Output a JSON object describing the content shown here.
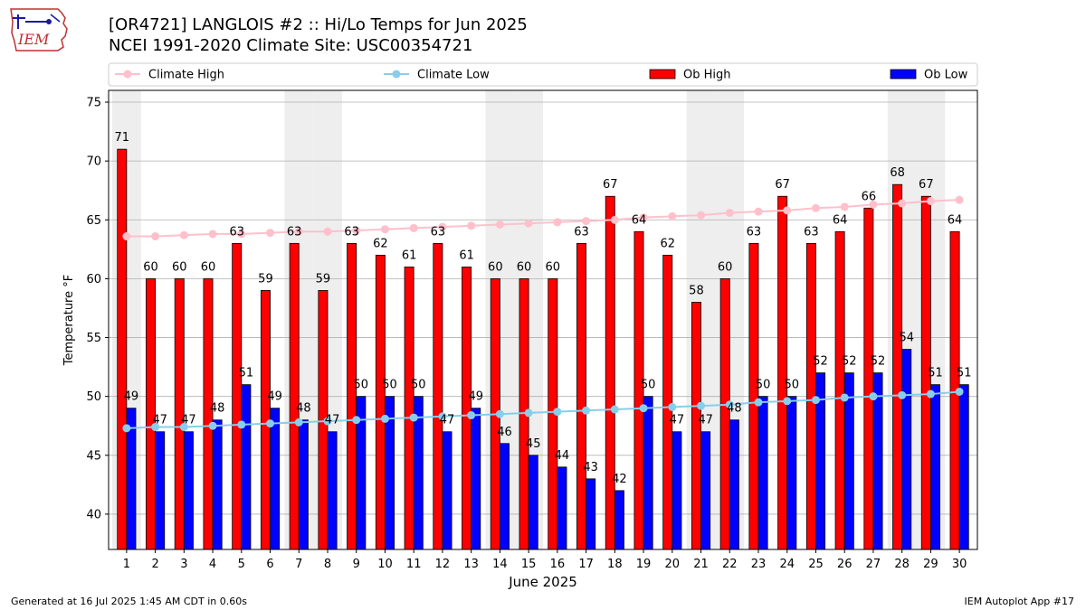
{
  "title_line1": "[OR4721] LANGLOIS #2 :: Hi/Lo Temps for Jun 2025",
  "title_line2": "NCEI 1991-2020 Climate Site: USC00354721",
  "logo_text": "IEM",
  "footer_left": "Generated at 16 Jul 2025 1:45 AM CDT in 0.60s",
  "footer_right": "IEM Autoplot App #17",
  "colors": {
    "ob_high": "#ff0000",
    "ob_low": "#0000ff",
    "climate_high": "#ffc0cb",
    "climate_low": "#87ceeb",
    "weekend_shade": "#eeeeee",
    "grid": "#b0b0b0"
  },
  "chart_data": {
    "type": "bar",
    "xlabel": "June 2025",
    "ylabel": "Temperature °F",
    "ylim": [
      37,
      76
    ],
    "yticks": [
      40,
      45,
      50,
      55,
      60,
      65,
      70,
      75
    ],
    "grid": "horizontal",
    "legend_position": "top",
    "categories": [
      "1",
      "2",
      "3",
      "4",
      "5",
      "6",
      "7",
      "8",
      "9",
      "10",
      "11",
      "12",
      "13",
      "14",
      "15",
      "16",
      "17",
      "18",
      "19",
      "20",
      "21",
      "22",
      "23",
      "24",
      "25",
      "26",
      "27",
      "28",
      "29",
      "30"
    ],
    "shaded_days": [
      1,
      7,
      8,
      14,
      15,
      21,
      22,
      28,
      29
    ],
    "series": [
      {
        "name": "Climate High",
        "kind": "line",
        "values": [
          63.6,
          63.6,
          63.7,
          63.8,
          63.8,
          63.9,
          64.0,
          64.0,
          64.1,
          64.2,
          64.3,
          64.4,
          64.5,
          64.6,
          64.7,
          64.8,
          64.9,
          65.0,
          65.2,
          65.3,
          65.4,
          65.6,
          65.7,
          65.8,
          66.0,
          66.1,
          66.3,
          66.4,
          66.6,
          66.7
        ]
      },
      {
        "name": "Climate Low",
        "kind": "line",
        "values": [
          47.3,
          47.4,
          47.4,
          47.5,
          47.6,
          47.7,
          47.8,
          47.9,
          48.0,
          48.1,
          48.2,
          48.3,
          48.4,
          48.5,
          48.6,
          48.7,
          48.8,
          48.9,
          49.0,
          49.1,
          49.2,
          49.3,
          49.5,
          49.6,
          49.7,
          49.9,
          50.0,
          50.1,
          50.2,
          50.4
        ]
      },
      {
        "name": "Ob High",
        "kind": "bar",
        "values": [
          71,
          60,
          60,
          60,
          63,
          59,
          63,
          59,
          63,
          62,
          61,
          63,
          61,
          60,
          60,
          60,
          63,
          67,
          64,
          62,
          58,
          60,
          63,
          67,
          63,
          64,
          66,
          68,
          67,
          64
        ]
      },
      {
        "name": "Ob Low",
        "kind": "bar",
        "values": [
          49,
          47,
          47,
          48,
          51,
          49,
          48,
          47,
          50,
          50,
          50,
          47,
          49,
          46,
          45,
          44,
          43,
          42,
          50,
          47,
          47,
          48,
          50,
          50,
          52,
          52,
          52,
          54,
          51,
          51
        ]
      }
    ]
  }
}
